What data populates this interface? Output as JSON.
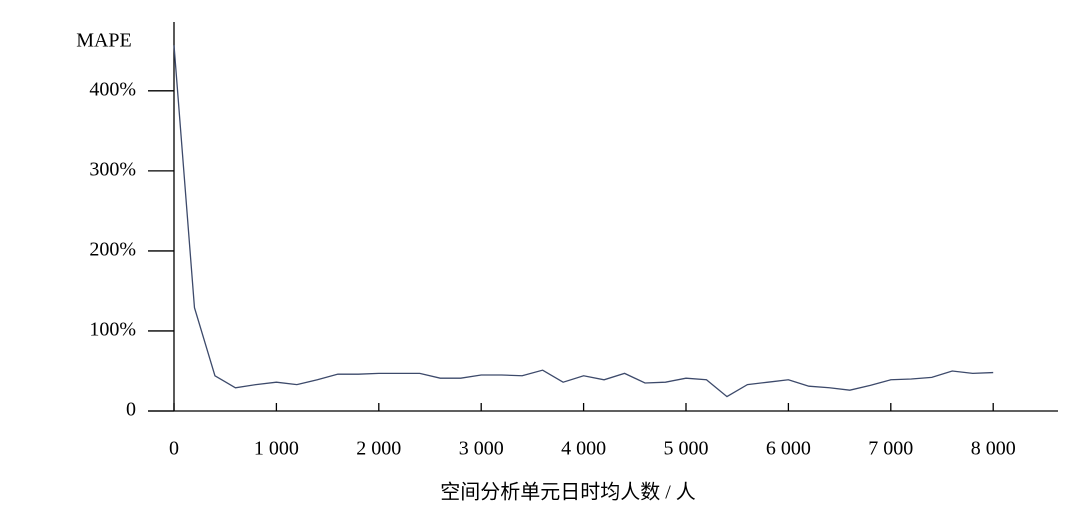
{
  "chart_data": {
    "type": "line",
    "y_label": "MAPE",
    "x_label": "空间分析单元日时均人数 / 人",
    "x": [
      0,
      200,
      400,
      600,
      800,
      1000,
      1200,
      1400,
      1600,
      1800,
      2000,
      2200,
      2400,
      2600,
      2800,
      3000,
      3200,
      3400,
      3600,
      3800,
      4000,
      4200,
      4400,
      4600,
      4800,
      5000,
      5200,
      5400,
      5600,
      5800,
      6000,
      6200,
      6400,
      6600,
      6800,
      7000,
      7200,
      7400,
      7600,
      7800,
      8000
    ],
    "series": [
      {
        "name": "MAPE",
        "color": "#3d4a6b",
        "values": [
          457,
          129,
          44,
          29,
          33,
          36,
          33,
          39,
          46,
          46,
          47,
          47,
          47,
          41,
          41,
          45,
          45,
          44,
          51,
          36,
          44,
          39,
          47,
          35,
          36,
          41,
          39,
          18,
          33,
          36,
          39,
          31,
          29,
          26,
          32,
          39,
          40,
          42,
          50,
          47,
          48
        ]
      }
    ],
    "xlim": [
      0,
      8640
    ],
    "ylim": [
      0,
      486
    ],
    "xticks": [
      0,
      {
        "value": 1000,
        "label": "1 000"
      },
      {
        "value": 2000,
        "label": "2 000"
      },
      {
        "value": 3000,
        "label": "3 000"
      },
      {
        "value": 4000,
        "label": "4 000"
      },
      {
        "value": 5000,
        "label": "5 000"
      },
      {
        "value": 6000,
        "label": "6 000"
      },
      {
        "value": 7000,
        "label": "7 000"
      },
      {
        "value": 8000,
        "label": "8 000"
      }
    ],
    "yticks": [
      0,
      {
        "value": 100,
        "label": "100%"
      },
      {
        "value": 200,
        "label": "200%"
      },
      {
        "value": 300,
        "label": "300%"
      },
      {
        "value": 400,
        "label": "400%"
      }
    ]
  }
}
